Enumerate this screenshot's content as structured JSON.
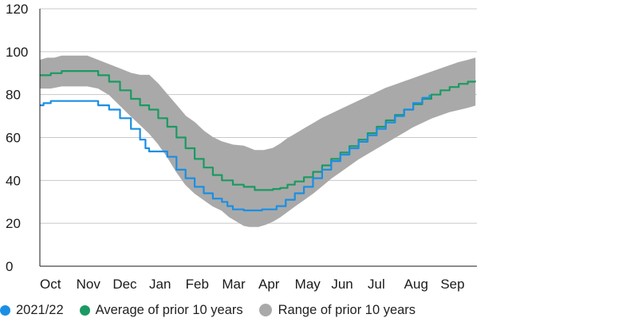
{
  "chart_data": {
    "type": "line",
    "title": "",
    "xlabel": "",
    "ylabel": "",
    "ylim": [
      0,
      120
    ],
    "yticks": [
      0,
      20,
      40,
      60,
      80,
      100,
      120
    ],
    "x_domain": [
      0,
      12
    ],
    "x_ticks": [
      {
        "label": "Oct",
        "x": 0
      },
      {
        "label": "Nov",
        "x": 1
      },
      {
        "label": "Dec",
        "x": 2
      },
      {
        "label": "Jan",
        "x": 3
      },
      {
        "label": "Feb",
        "x": 4
      },
      {
        "label": "Mar",
        "x": 5
      },
      {
        "label": "Apr",
        "x": 6
      },
      {
        "label": "May",
        "x": 7
      },
      {
        "label": "Jun",
        "x": 8
      },
      {
        "label": "Jul",
        "x": 9
      },
      {
        "label": "Aug",
        "x": 10
      },
      {
        "label": "Sep",
        "x": 11
      }
    ],
    "grid": "horizontal",
    "legend_position": "bottom",
    "series": [
      {
        "name": "2021/22",
        "color": "#1a8fe3",
        "kind": "line",
        "points": [
          [
            0,
            75
          ],
          [
            0.1,
            76
          ],
          [
            0.3,
            77
          ],
          [
            0.6,
            77
          ],
          [
            1.0,
            77
          ],
          [
            1.3,
            77
          ],
          [
            1.6,
            75
          ],
          [
            1.9,
            73
          ],
          [
            2.2,
            69
          ],
          [
            2.5,
            64
          ],
          [
            2.75,
            59
          ],
          [
            2.9,
            55
          ],
          [
            3.0,
            53.5
          ],
          [
            3.3,
            53.5
          ],
          [
            3.5,
            51
          ],
          [
            3.75,
            45
          ],
          [
            4.0,
            41
          ],
          [
            4.25,
            37
          ],
          [
            4.5,
            34
          ],
          [
            4.75,
            31.5
          ],
          [
            5.0,
            30
          ],
          [
            5.15,
            28
          ],
          [
            5.3,
            26.5
          ],
          [
            5.6,
            26
          ],
          [
            5.9,
            26
          ],
          [
            6.1,
            26.5
          ],
          [
            6.3,
            26.5
          ],
          [
            6.5,
            28
          ],
          [
            6.75,
            31
          ],
          [
            7.0,
            34
          ],
          [
            7.25,
            37
          ],
          [
            7.5,
            41
          ],
          [
            7.75,
            45
          ],
          [
            8.0,
            49
          ],
          [
            8.25,
            52
          ],
          [
            8.5,
            55
          ],
          [
            8.75,
            58
          ],
          [
            9.0,
            61
          ],
          [
            9.25,
            64
          ],
          [
            9.5,
            67
          ],
          [
            9.75,
            70
          ],
          [
            10.0,
            73
          ],
          [
            10.25,
            76
          ],
          [
            10.5,
            78.5
          ],
          [
            10.7,
            80
          ]
        ]
      },
      {
        "name": "Average of prior 10 years",
        "color": "#1a9a62",
        "kind": "line",
        "points": [
          [
            0,
            89
          ],
          [
            0.3,
            90
          ],
          [
            0.6,
            91
          ],
          [
            1.0,
            91
          ],
          [
            1.3,
            91
          ],
          [
            1.6,
            89
          ],
          [
            1.9,
            86
          ],
          [
            2.2,
            82
          ],
          [
            2.5,
            78
          ],
          [
            2.75,
            75
          ],
          [
            3.0,
            73
          ],
          [
            3.25,
            69
          ],
          [
            3.5,
            65
          ],
          [
            3.75,
            60
          ],
          [
            4.0,
            55
          ],
          [
            4.25,
            50
          ],
          [
            4.5,
            46
          ],
          [
            4.75,
            42.5
          ],
          [
            5.0,
            40
          ],
          [
            5.3,
            38
          ],
          [
            5.6,
            37
          ],
          [
            5.9,
            35.5
          ],
          [
            6.15,
            35.5
          ],
          [
            6.4,
            36
          ],
          [
            6.6,
            36.5
          ],
          [
            6.8,
            38
          ],
          [
            7.0,
            39.5
          ],
          [
            7.25,
            41.5
          ],
          [
            7.5,
            44
          ],
          [
            7.75,
            47
          ],
          [
            8.0,
            50
          ],
          [
            8.25,
            53
          ],
          [
            8.5,
            56
          ],
          [
            8.75,
            59
          ],
          [
            9.0,
            62
          ],
          [
            9.25,
            65
          ],
          [
            9.5,
            68
          ],
          [
            9.75,
            70.5
          ],
          [
            10.0,
            73
          ],
          [
            10.25,
            75.5
          ],
          [
            10.5,
            78
          ],
          [
            10.75,
            80
          ],
          [
            11.0,
            82
          ],
          [
            11.25,
            83.5
          ],
          [
            11.5,
            85
          ],
          [
            11.75,
            86
          ],
          [
            11.95,
            86.5
          ]
        ]
      },
      {
        "name": "Range of prior 10 years",
        "color": "#a9a9a9",
        "kind": "band",
        "upper": [
          [
            0,
            96
          ],
          [
            0.2,
            97
          ],
          [
            0.4,
            97
          ],
          [
            0.6,
            98
          ],
          [
            1.0,
            98
          ],
          [
            1.3,
            98
          ],
          [
            1.6,
            96
          ],
          [
            1.9,
            94
          ],
          [
            2.2,
            92
          ],
          [
            2.5,
            90
          ],
          [
            2.75,
            89
          ],
          [
            3.0,
            89
          ],
          [
            3.25,
            85
          ],
          [
            3.5,
            80
          ],
          [
            3.75,
            75
          ],
          [
            4.0,
            70
          ],
          [
            4.25,
            67
          ],
          [
            4.5,
            63
          ],
          [
            4.75,
            60
          ],
          [
            5.0,
            58
          ],
          [
            5.3,
            56.5
          ],
          [
            5.6,
            56
          ],
          [
            5.9,
            54
          ],
          [
            6.15,
            54
          ],
          [
            6.4,
            55
          ],
          [
            6.6,
            57
          ],
          [
            6.8,
            59.5
          ],
          [
            7.0,
            61.5
          ],
          [
            7.25,
            64
          ],
          [
            7.5,
            66.5
          ],
          [
            7.75,
            69
          ],
          [
            8.0,
            71
          ],
          [
            8.25,
            73
          ],
          [
            8.5,
            75
          ],
          [
            8.75,
            77
          ],
          [
            9.0,
            79
          ],
          [
            9.25,
            81
          ],
          [
            9.5,
            83
          ],
          [
            9.75,
            84.5
          ],
          [
            10.0,
            86
          ],
          [
            10.25,
            87.5
          ],
          [
            10.5,
            89
          ],
          [
            10.75,
            90.5
          ],
          [
            11.0,
            92
          ],
          [
            11.25,
            93.5
          ],
          [
            11.5,
            95
          ],
          [
            11.75,
            96
          ],
          [
            11.95,
            97
          ]
        ],
        "lower": [
          [
            0,
            83
          ],
          [
            0.3,
            83
          ],
          [
            0.6,
            84
          ],
          [
            1.0,
            84
          ],
          [
            1.3,
            84
          ],
          [
            1.6,
            83
          ],
          [
            1.9,
            80
          ],
          [
            2.2,
            75
          ],
          [
            2.5,
            70
          ],
          [
            2.75,
            66
          ],
          [
            3.0,
            62
          ],
          [
            3.25,
            57
          ],
          [
            3.5,
            51
          ],
          [
            3.75,
            44
          ],
          [
            4.0,
            38
          ],
          [
            4.25,
            34
          ],
          [
            4.5,
            31
          ],
          [
            4.75,
            28
          ],
          [
            5.0,
            26
          ],
          [
            5.2,
            23
          ],
          [
            5.4,
            21
          ],
          [
            5.6,
            19
          ],
          [
            5.75,
            18.5
          ],
          [
            6.0,
            18.5
          ],
          [
            6.2,
            19.5
          ],
          [
            6.4,
            21
          ],
          [
            6.6,
            23
          ],
          [
            6.8,
            25.5
          ],
          [
            7.0,
            28
          ],
          [
            7.25,
            31
          ],
          [
            7.5,
            34
          ],
          [
            7.75,
            37.5
          ],
          [
            8.0,
            41
          ],
          [
            8.25,
            44
          ],
          [
            8.5,
            47
          ],
          [
            8.75,
            50
          ],
          [
            9.0,
            52.5
          ],
          [
            9.25,
            55
          ],
          [
            9.5,
            57.5
          ],
          [
            9.75,
            60
          ],
          [
            10.0,
            62.5
          ],
          [
            10.25,
            65
          ],
          [
            10.5,
            67
          ],
          [
            10.75,
            69
          ],
          [
            11.0,
            70.5
          ],
          [
            11.25,
            72
          ],
          [
            11.5,
            73
          ],
          [
            11.75,
            74
          ],
          [
            11.95,
            75
          ]
        ]
      }
    ]
  },
  "legend": [
    {
      "label": "2021/22",
      "color": "#1a8fe3",
      "size": "small"
    },
    {
      "label": "Average of prior 10 years",
      "color": "#1a9a62",
      "size": "small"
    },
    {
      "label": "Range of prior 10 years",
      "color": "#a9a9a9",
      "size": "large"
    }
  ]
}
